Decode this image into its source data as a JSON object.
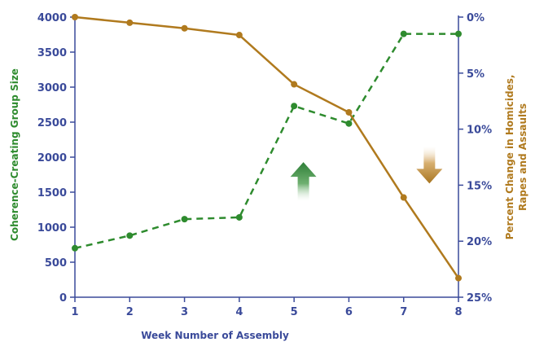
{
  "chart_data": {
    "type": "line",
    "xlabel": "Week Number of Assembly",
    "ylabel_left": "Coherence-Creating Group Size",
    "ylabel_right_line1": "Percent Change in Homicides,",
    "ylabel_right_line2": "Rapes and Assaults",
    "x": [
      1,
      2,
      3,
      4,
      5,
      6,
      7,
      8
    ],
    "x_tick_labels": [
      "1",
      "2",
      "3",
      "4",
      "5",
      "6",
      "7",
      "8"
    ],
    "ylim_left": [
      0,
      4000
    ],
    "y_left_ticks": [
      "0",
      "500",
      "1000",
      "1500",
      "2000",
      "2500",
      "3000",
      "3500",
      "4000"
    ],
    "ylim_right": [
      0,
      25
    ],
    "y_right_ticks": [
      "0%",
      "5%",
      "10%",
      "15%",
      "20%",
      "25%"
    ],
    "grid": false,
    "colors": {
      "axis": "#3a4a9a",
      "group_size": "#2e8b2e",
      "crime_change": "#b07a1e",
      "up_arrow": "#3f8f45",
      "down_arrow": "#b88a35"
    },
    "series": [
      {
        "axis": "left",
        "style": "dashed",
        "marker": "circle",
        "values": [
          700,
          880,
          1115,
          1140,
          2730,
          2480,
          3760,
          3760
        ]
      },
      {
        "axis": "right",
        "style": "solid",
        "marker": "circle",
        "values": [
          0,
          0.5,
          1.0,
          1.6,
          6.0,
          8.5,
          16.1,
          23.3
        ]
      }
    ],
    "annotations": [
      {
        "type": "up-arrow",
        "x": 5.17,
        "value_left": 1650
      },
      {
        "type": "down-arrow",
        "x": 7.47,
        "value_left": 1880
      }
    ]
  }
}
